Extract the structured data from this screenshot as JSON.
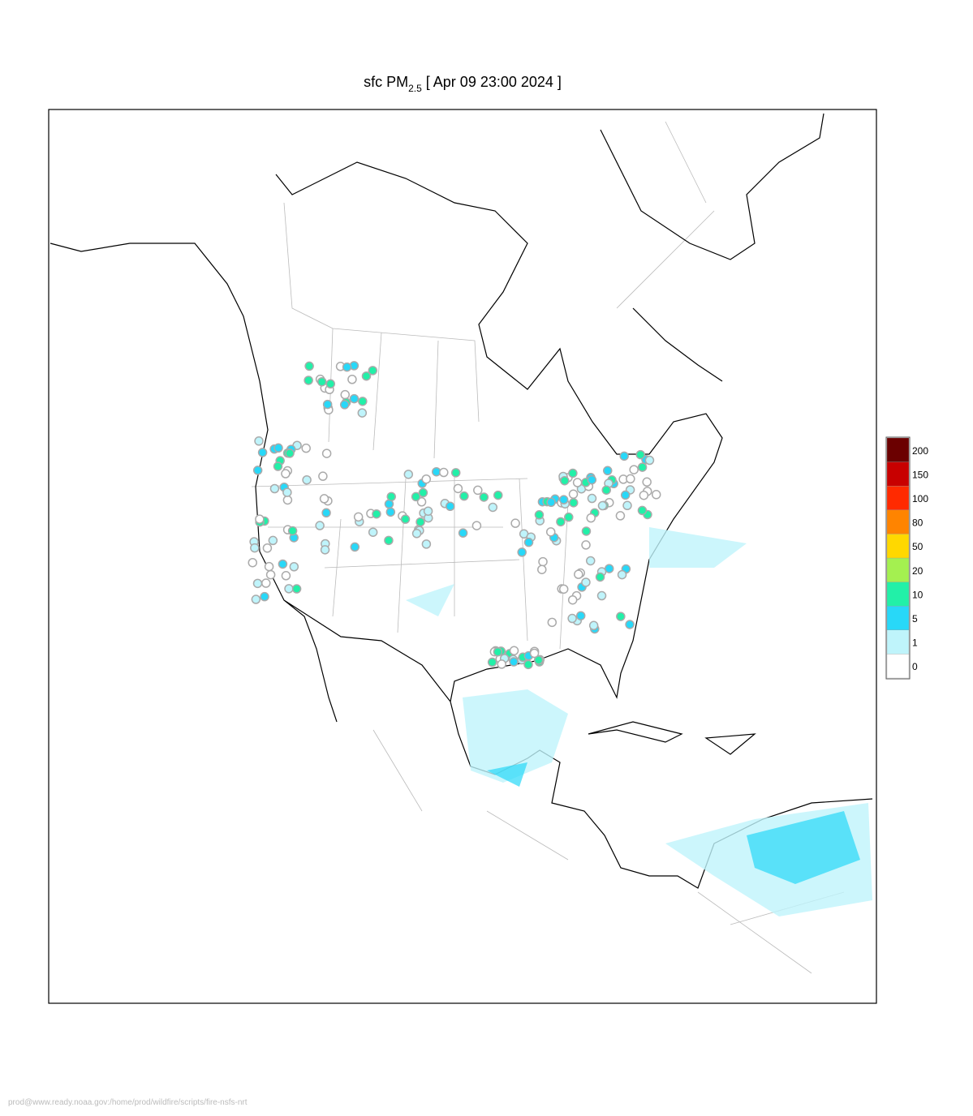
{
  "title": {
    "prefix": "sfc PM",
    "subscript": "2.5",
    "suffix": "[ Apr 09 23:00 2024 ]"
  },
  "legend": {
    "levels": [
      0,
      1,
      5,
      10,
      20,
      50,
      80,
      100,
      150,
      200
    ],
    "colors": [
      "#ffffff",
      "#bff4fb",
      "#28d8f8",
      "#22f0a8",
      "#a4f050",
      "#ffd800",
      "#ff8400",
      "#ff2a00",
      "#c80000",
      "#6b0000"
    ]
  },
  "footer": "prod@www.ready.noaa.gov:/home/prod/wildfire/scripts/fire-nsfs-nrt"
}
